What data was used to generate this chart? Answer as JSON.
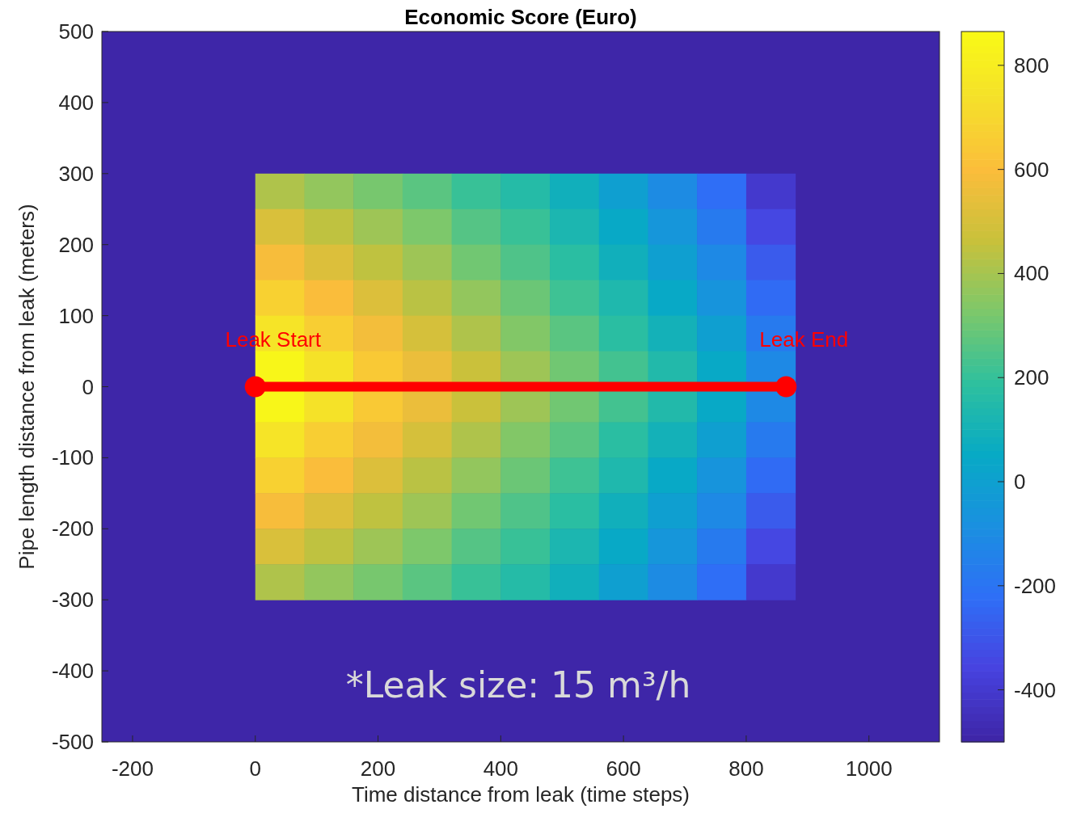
{
  "chart_data": {
    "type": "heatmap",
    "title": "Economic Score (Euro)",
    "xlabel": "Time distance from leak (time steps)",
    "ylabel": "Pipe length distance from leak (meters)",
    "x": [
      40,
      120,
      200,
      280,
      360,
      440,
      520,
      600,
      680,
      760,
      840
    ],
    "y": [
      275,
      225,
      175,
      125,
      75,
      25,
      -25,
      -75,
      -125,
      -175,
      -225,
      -275
    ],
    "cells": [
      [
        410,
        360,
        310,
        260,
        200,
        150,
        80,
        -10,
        -110,
        -230,
        -410
      ],
      [
        500,
        440,
        380,
        320,
        250,
        200,
        120,
        40,
        -60,
        -180,
        -350
      ],
      [
        580,
        510,
        440,
        380,
        300,
        240,
        170,
        80,
        -10,
        -120,
        -290
      ],
      [
        670,
        590,
        510,
        430,
        360,
        290,
        210,
        130,
        40,
        -70,
        -240
      ],
      [
        750,
        660,
        570,
        490,
        410,
        330,
        260,
        170,
        90,
        -10,
        -180
      ],
      [
        840,
        740,
        640,
        550,
        460,
        380,
        300,
        220,
        140,
        40,
        -120
      ],
      [
        840,
        740,
        640,
        550,
        460,
        380,
        300,
        220,
        140,
        40,
        -120
      ],
      [
        750,
        660,
        570,
        490,
        410,
        330,
        260,
        170,
        90,
        -10,
        -180
      ],
      [
        670,
        590,
        510,
        430,
        360,
        290,
        210,
        130,
        40,
        -70,
        -240
      ],
      [
        580,
        510,
        440,
        380,
        300,
        240,
        170,
        80,
        -10,
        -120,
        -290
      ],
      [
        500,
        440,
        380,
        320,
        250,
        200,
        120,
        40,
        -60,
        -180,
        -350
      ],
      [
        410,
        360,
        310,
        260,
        200,
        150,
        80,
        -10,
        -110,
        -230,
        -410
      ]
    ],
    "xlim": [
      -250,
      1115
    ],
    "xticks": [
      -200,
      0,
      200,
      400,
      600,
      800,
      1000
    ],
    "ylim": [
      -500,
      500
    ],
    "yticks": [
      -500,
      -400,
      -300,
      -200,
      -100,
      0,
      100,
      200,
      300,
      400,
      500
    ],
    "clim": [
      -500,
      865
    ],
    "cticks": [
      -400,
      -200,
      0,
      200,
      400,
      600,
      800
    ],
    "series": [
      {
        "type": "line",
        "color": "#ff0000",
        "x": [
          0,
          865
        ],
        "values": [
          0,
          0
        ],
        "marker": "circle"
      }
    ],
    "annotations": [
      {
        "text": "Leak Start",
        "x": 0,
        "y": 0
      },
      {
        "text": "Leak End",
        "x": 865,
        "y": 0
      },
      "*Leak size: 15 m³/h"
    ]
  }
}
